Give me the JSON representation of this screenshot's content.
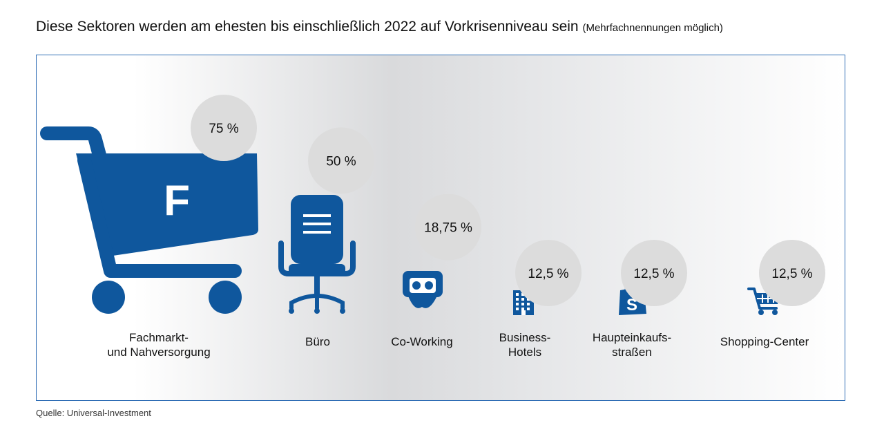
{
  "title": {
    "main": "Diese Sektoren werden am ehesten bis einschließlich 2022 auf Vorkrisenniveau sein",
    "note": "(Mehrfachnennungen möglich)"
  },
  "source": "Quelle: Universal-Investment",
  "colors": {
    "icon": "#0f579d",
    "bubble": "#dcdcdc",
    "frame": "#2f6db5"
  },
  "chart_data": {
    "type": "bar",
    "categories": [
      "Fachmarkt- und Nahversorgung",
      "Büro",
      "Co-Working",
      "Business-Hotels",
      "Haupteinkaufs-straßen",
      "Shopping-Center"
    ],
    "category_lines": [
      [
        "Fachmarkt-",
        "und Nahversorgung"
      ],
      [
        "Büro"
      ],
      [
        "Co-Working"
      ],
      [
        "Business-",
        "Hotels"
      ],
      [
        "Haupteinkaufs-",
        "straßen"
      ],
      [
        "Shopping-Center"
      ]
    ],
    "values": [
      75,
      50,
      18.75,
      12.5,
      12.5,
      12.5
    ],
    "value_labels": [
      "75 %",
      "50 %",
      "18,75 %",
      "12,5 %",
      "12,5 %",
      "12,5 %"
    ],
    "icons": [
      "shopping-cart-icon",
      "office-chair-icon",
      "coworking-icon",
      "hotel-icon",
      "shopping-bag-icon",
      "shopping-cart-small-icon"
    ],
    "cart_letter": "F"
  }
}
